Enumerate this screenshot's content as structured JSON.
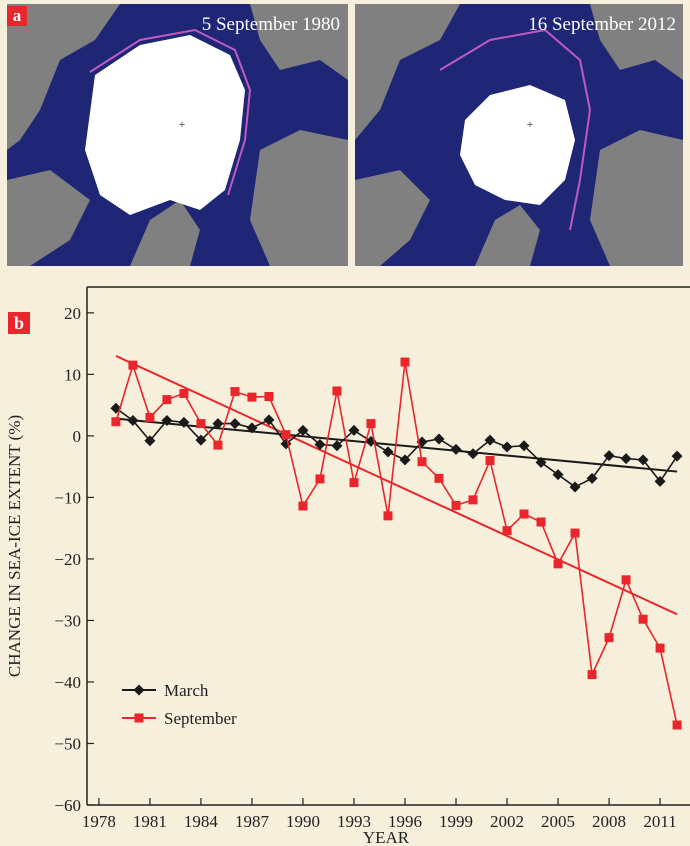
{
  "panel_a": {
    "label": "a",
    "maps": [
      {
        "caption": "5 September 1980"
      },
      {
        "caption": "16 September 2012"
      }
    ]
  },
  "chart_data": {
    "type": "line",
    "panel_label": "b",
    "xlabel": "YEAR",
    "ylabel": "CHANGE IN SEA-ICE EXTENT (%)",
    "x": [
      1979,
      1980,
      1981,
      1982,
      1983,
      1984,
      1985,
      1986,
      1987,
      1988,
      1989,
      1990,
      1991,
      1992,
      1993,
      1994,
      1995,
      1996,
      1997,
      1998,
      1999,
      2000,
      2001,
      2002,
      2003,
      2004,
      2005,
      2006,
      2007,
      2008,
      2009,
      2010,
      2011,
      2012
    ],
    "series": [
      {
        "name": "March",
        "color": "#1a1a1a",
        "marker": "diamond",
        "values": [
          4.5,
          2.5,
          -0.8,
          2.5,
          2.2,
          -0.7,
          2,
          2,
          1.3,
          2.6,
          -1.3,
          0.9,
          -1.4,
          -1.6,
          0.9,
          -0.9,
          -2.6,
          -3.9,
          -1,
          -0.5,
          -2.2,
          -2.9,
          -0.7,
          -1.8,
          -1.6,
          -4.3,
          -6.3,
          -8.3,
          -6.9,
          -3.2,
          -3.7,
          -3.9,
          -7.4,
          -3.3
        ]
      },
      {
        "name": "September",
        "color": "#e8262b",
        "marker": "square",
        "values": [
          2.3,
          11.5,
          3,
          5.9,
          6.9,
          2,
          -1.5,
          7.2,
          6.3,
          6.4,
          0.2,
          -11.4,
          -7,
          7.3,
          -7.6,
          2,
          -13,
          12,
          -4.2,
          -6.9,
          -11.3,
          -10.4,
          -4,
          -15.4,
          -12.7,
          -14,
          -20.8,
          -15.8,
          -38.8,
          -32.8,
          -23.4,
          -29.8,
          -34.5,
          -47
        ]
      }
    ],
    "trendlines": [
      {
        "color": "#1a1a1a",
        "x": [
          1979,
          2012
        ],
        "values": [
          2.8,
          -5.8
        ]
      },
      {
        "color": "#e8262b",
        "x": [
          1979,
          2012
        ],
        "values": [
          13,
          -29
        ]
      }
    ],
    "xlim": [
      1977.3,
      2012.76
    ],
    "ylim": [
      -60,
      24.2
    ],
    "xticks": [
      1978,
      1981,
      1984,
      1987,
      1990,
      1993,
      1996,
      1999,
      2002,
      2005,
      2008,
      2011
    ],
    "yticks": [
      20,
      10,
      0,
      {
        "value": -10,
        "label": "−10"
      },
      {
        "value": -20,
        "label": "−20"
      },
      {
        "value": -30,
        "label": "−30"
      },
      {
        "value": -40,
        "label": "−40"
      },
      {
        "value": -50,
        "label": "−50"
      },
      {
        "value": -60,
        "label": "−60"
      }
    ],
    "legend": "lower left",
    "grid": false
  }
}
